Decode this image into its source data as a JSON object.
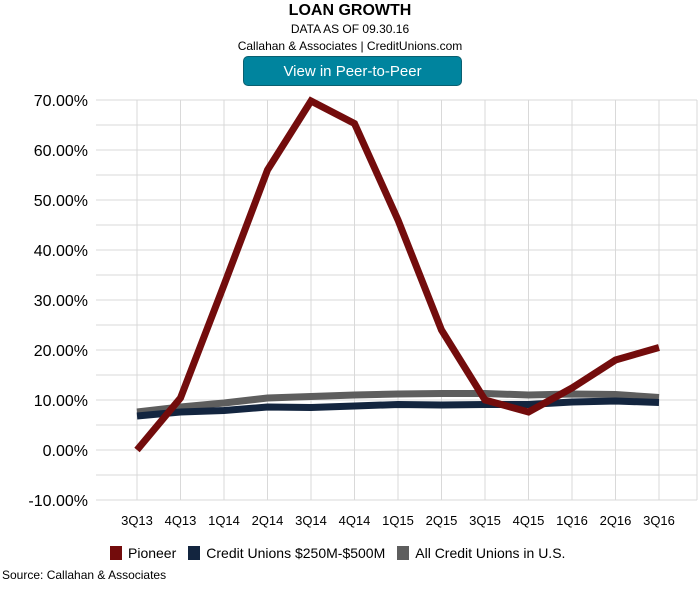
{
  "header": {
    "title": "LOAN GROWTH",
    "subtitle": "DATA AS OF 09.30.16",
    "credit": "Callahan & Associates | CreditUnions.com",
    "button_label": "View in Peer-to-Peer"
  },
  "source": "Source: Callahan & Associates",
  "chart_data": {
    "type": "line",
    "title": "LOAN GROWTH",
    "xlabel": "",
    "ylabel": "",
    "ylim": [
      -10,
      70
    ],
    "ytick_step": 10,
    "grid": true,
    "legend_position": "bottom",
    "yticks": [
      "-10.00%",
      "0.00%",
      "10.00%",
      "20.00%",
      "30.00%",
      "40.00%",
      "50.00%",
      "60.00%",
      "70.00%"
    ],
    "categories": [
      "3Q13",
      "4Q13",
      "1Q14",
      "2Q14",
      "3Q14",
      "4Q14",
      "1Q15",
      "2Q15",
      "3Q15",
      "4Q15",
      "1Q16",
      "2Q16",
      "3Q16"
    ],
    "series": [
      {
        "name": "Pioneer",
        "color": "#730c0c",
        "values": [
          0.0,
          10.4,
          33.0,
          56.0,
          69.8,
          65.3,
          46.0,
          24.0,
          10.0,
          7.6,
          12.4,
          18.0,
          20.5
        ]
      },
      {
        "name": "Credit Unions $250M-$500M",
        "color": "#13253f",
        "values": [
          6.8,
          7.6,
          7.9,
          8.6,
          8.5,
          8.8,
          9.1,
          9.0,
          9.1,
          9.1,
          9.6,
          9.8,
          9.5
        ]
      },
      {
        "name": "All Credit Unions in U.S.",
        "color": "#5e5e5e",
        "values": [
          7.6,
          8.6,
          9.4,
          10.4,
          10.7,
          11.0,
          11.2,
          11.3,
          11.3,
          11.0,
          11.2,
          11.1,
          10.5
        ]
      }
    ]
  }
}
